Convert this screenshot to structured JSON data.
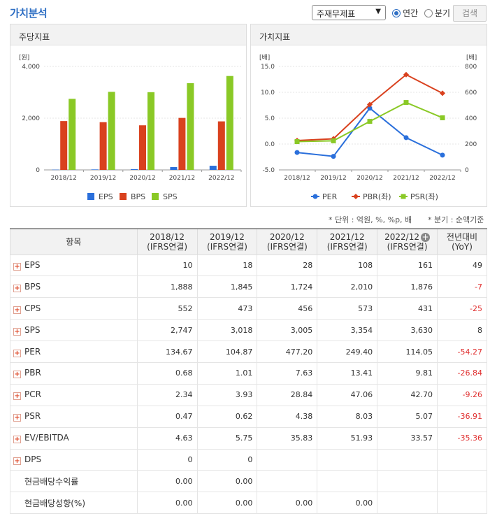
{
  "header": {
    "title": "가치분석",
    "select_value": "주재무제표",
    "radio_annual": "연간",
    "radio_quarter": "분기",
    "search_button": "검색"
  },
  "left_panel": {
    "title": "주당지표"
  },
  "right_panel": {
    "title": "가치지표"
  },
  "chart_data": [
    {
      "type": "bar",
      "title": "주당지표",
      "categories": [
        "2018/12",
        "2019/12",
        "2020/12",
        "2021/12",
        "2022/12"
      ],
      "ylabel": "[원]",
      "ylim": [
        0,
        4000
      ],
      "yticks": [
        "4,000",
        "2,000",
        "0"
      ],
      "ytick_values": [
        4000,
        2000,
        0
      ],
      "grid": true,
      "legend_position": "bottom",
      "series": [
        {
          "name": "EPS",
          "color": "#2a6fdb",
          "values": [
            10,
            18,
            28,
            108,
            161
          ]
        },
        {
          "name": "BPS",
          "color": "#d9411e",
          "values": [
            1888,
            1845,
            1724,
            2010,
            1876
          ]
        },
        {
          "name": "SPS",
          "color": "#8ac926",
          "values": [
            2747,
            3018,
            3005,
            3354,
            3630
          ]
        }
      ]
    },
    {
      "type": "line",
      "title": "가치지표",
      "categories": [
        "2018/12",
        "2019/12",
        "2020/12",
        "2021/12",
        "2022/12"
      ],
      "ylabel_left": "[배]",
      "ylabel_right": "[배]",
      "ylim_left": [
        -5,
        15
      ],
      "ylim_right": [
        0,
        800
      ],
      "yticks_left": [
        "15.0",
        "10.0",
        "5.0",
        "0.0",
        "-5.0"
      ],
      "yticks_left_values": [
        15,
        10,
        5,
        0,
        -5
      ],
      "yticks_right": [
        "800",
        "600",
        "400",
        "200",
        "0"
      ],
      "yticks_right_values": [
        800,
        600,
        400,
        200,
        0
      ],
      "grid": true,
      "legend_position": "bottom",
      "series": [
        {
          "name": "PER",
          "axis": "right",
          "color": "#2a6fdb",
          "marker": "circle",
          "values": [
            134.67,
            104.87,
            477.2,
            249.4,
            114.05
          ]
        },
        {
          "name": "PBR(좌)",
          "axis": "left",
          "color": "#d9411e",
          "marker": "diamond",
          "values": [
            0.68,
            1.01,
            7.63,
            13.41,
            9.81
          ]
        },
        {
          "name": "PSR(좌)",
          "axis": "left",
          "color": "#8ac926",
          "marker": "square",
          "values": [
            0.47,
            0.62,
            4.38,
            8.03,
            5.07
          ]
        }
      ]
    }
  ],
  "units_note": "* 단위 : 억원, %, %p, 배",
  "period_note": "* 분기 : 순액기준",
  "table": {
    "header_item": "항목",
    "periods": [
      {
        "year": "2018/12",
        "basis": "(IFRS연결)"
      },
      {
        "year": "2019/12",
        "basis": "(IFRS연결)"
      },
      {
        "year": "2020/12",
        "basis": "(IFRS연결)"
      },
      {
        "year": "2021/12",
        "basis": "(IFRS연결)"
      },
      {
        "year": "2022/12",
        "basis": "(IFRS연결)"
      }
    ],
    "yoy_label": "전년대비",
    "yoy_sub": "(YoY)",
    "rows": [
      {
        "label": "EPS",
        "expand": true,
        "values": [
          "10",
          "18",
          "28",
          "108",
          "161"
        ],
        "yoy": "49"
      },
      {
        "label": "BPS",
        "expand": true,
        "values": [
          "1,888",
          "1,845",
          "1,724",
          "2,010",
          "1,876"
        ],
        "yoy": "-7"
      },
      {
        "label": "CPS",
        "expand": true,
        "values": [
          "552",
          "473",
          "456",
          "573",
          "431"
        ],
        "yoy": "-25"
      },
      {
        "label": "SPS",
        "expand": true,
        "values": [
          "2,747",
          "3,018",
          "3,005",
          "3,354",
          "3,630"
        ],
        "yoy": "8"
      },
      {
        "label": "PER",
        "expand": true,
        "values": [
          "134.67",
          "104.87",
          "477.20",
          "249.40",
          "114.05"
        ],
        "yoy": "-54.27"
      },
      {
        "label": "PBR",
        "expand": true,
        "values": [
          "0.68",
          "1.01",
          "7.63",
          "13.41",
          "9.81"
        ],
        "yoy": "-26.84"
      },
      {
        "label": "PCR",
        "expand": true,
        "values": [
          "2.34",
          "3.93",
          "28.84",
          "47.06",
          "42.70"
        ],
        "yoy": "-9.26"
      },
      {
        "label": "PSR",
        "expand": true,
        "values": [
          "0.47",
          "0.62",
          "4.38",
          "8.03",
          "5.07"
        ],
        "yoy": "-36.91"
      },
      {
        "label": "EV/EBITDA",
        "expand": true,
        "values": [
          "4.63",
          "5.75",
          "35.83",
          "51.93",
          "33.57"
        ],
        "yoy": "-35.36"
      },
      {
        "label": "DPS",
        "expand": true,
        "values": [
          "0",
          "0",
          "",
          "",
          ""
        ],
        "yoy": ""
      },
      {
        "label": "현금배당수익률",
        "expand": false,
        "values": [
          "0.00",
          "0.00",
          "",
          "",
          ""
        ],
        "yoy": ""
      },
      {
        "label": "현금배당성향(%)",
        "expand": false,
        "values": [
          "0.00",
          "0.00",
          "0.00",
          "0.00",
          ""
        ],
        "yoy": ""
      }
    ]
  }
}
